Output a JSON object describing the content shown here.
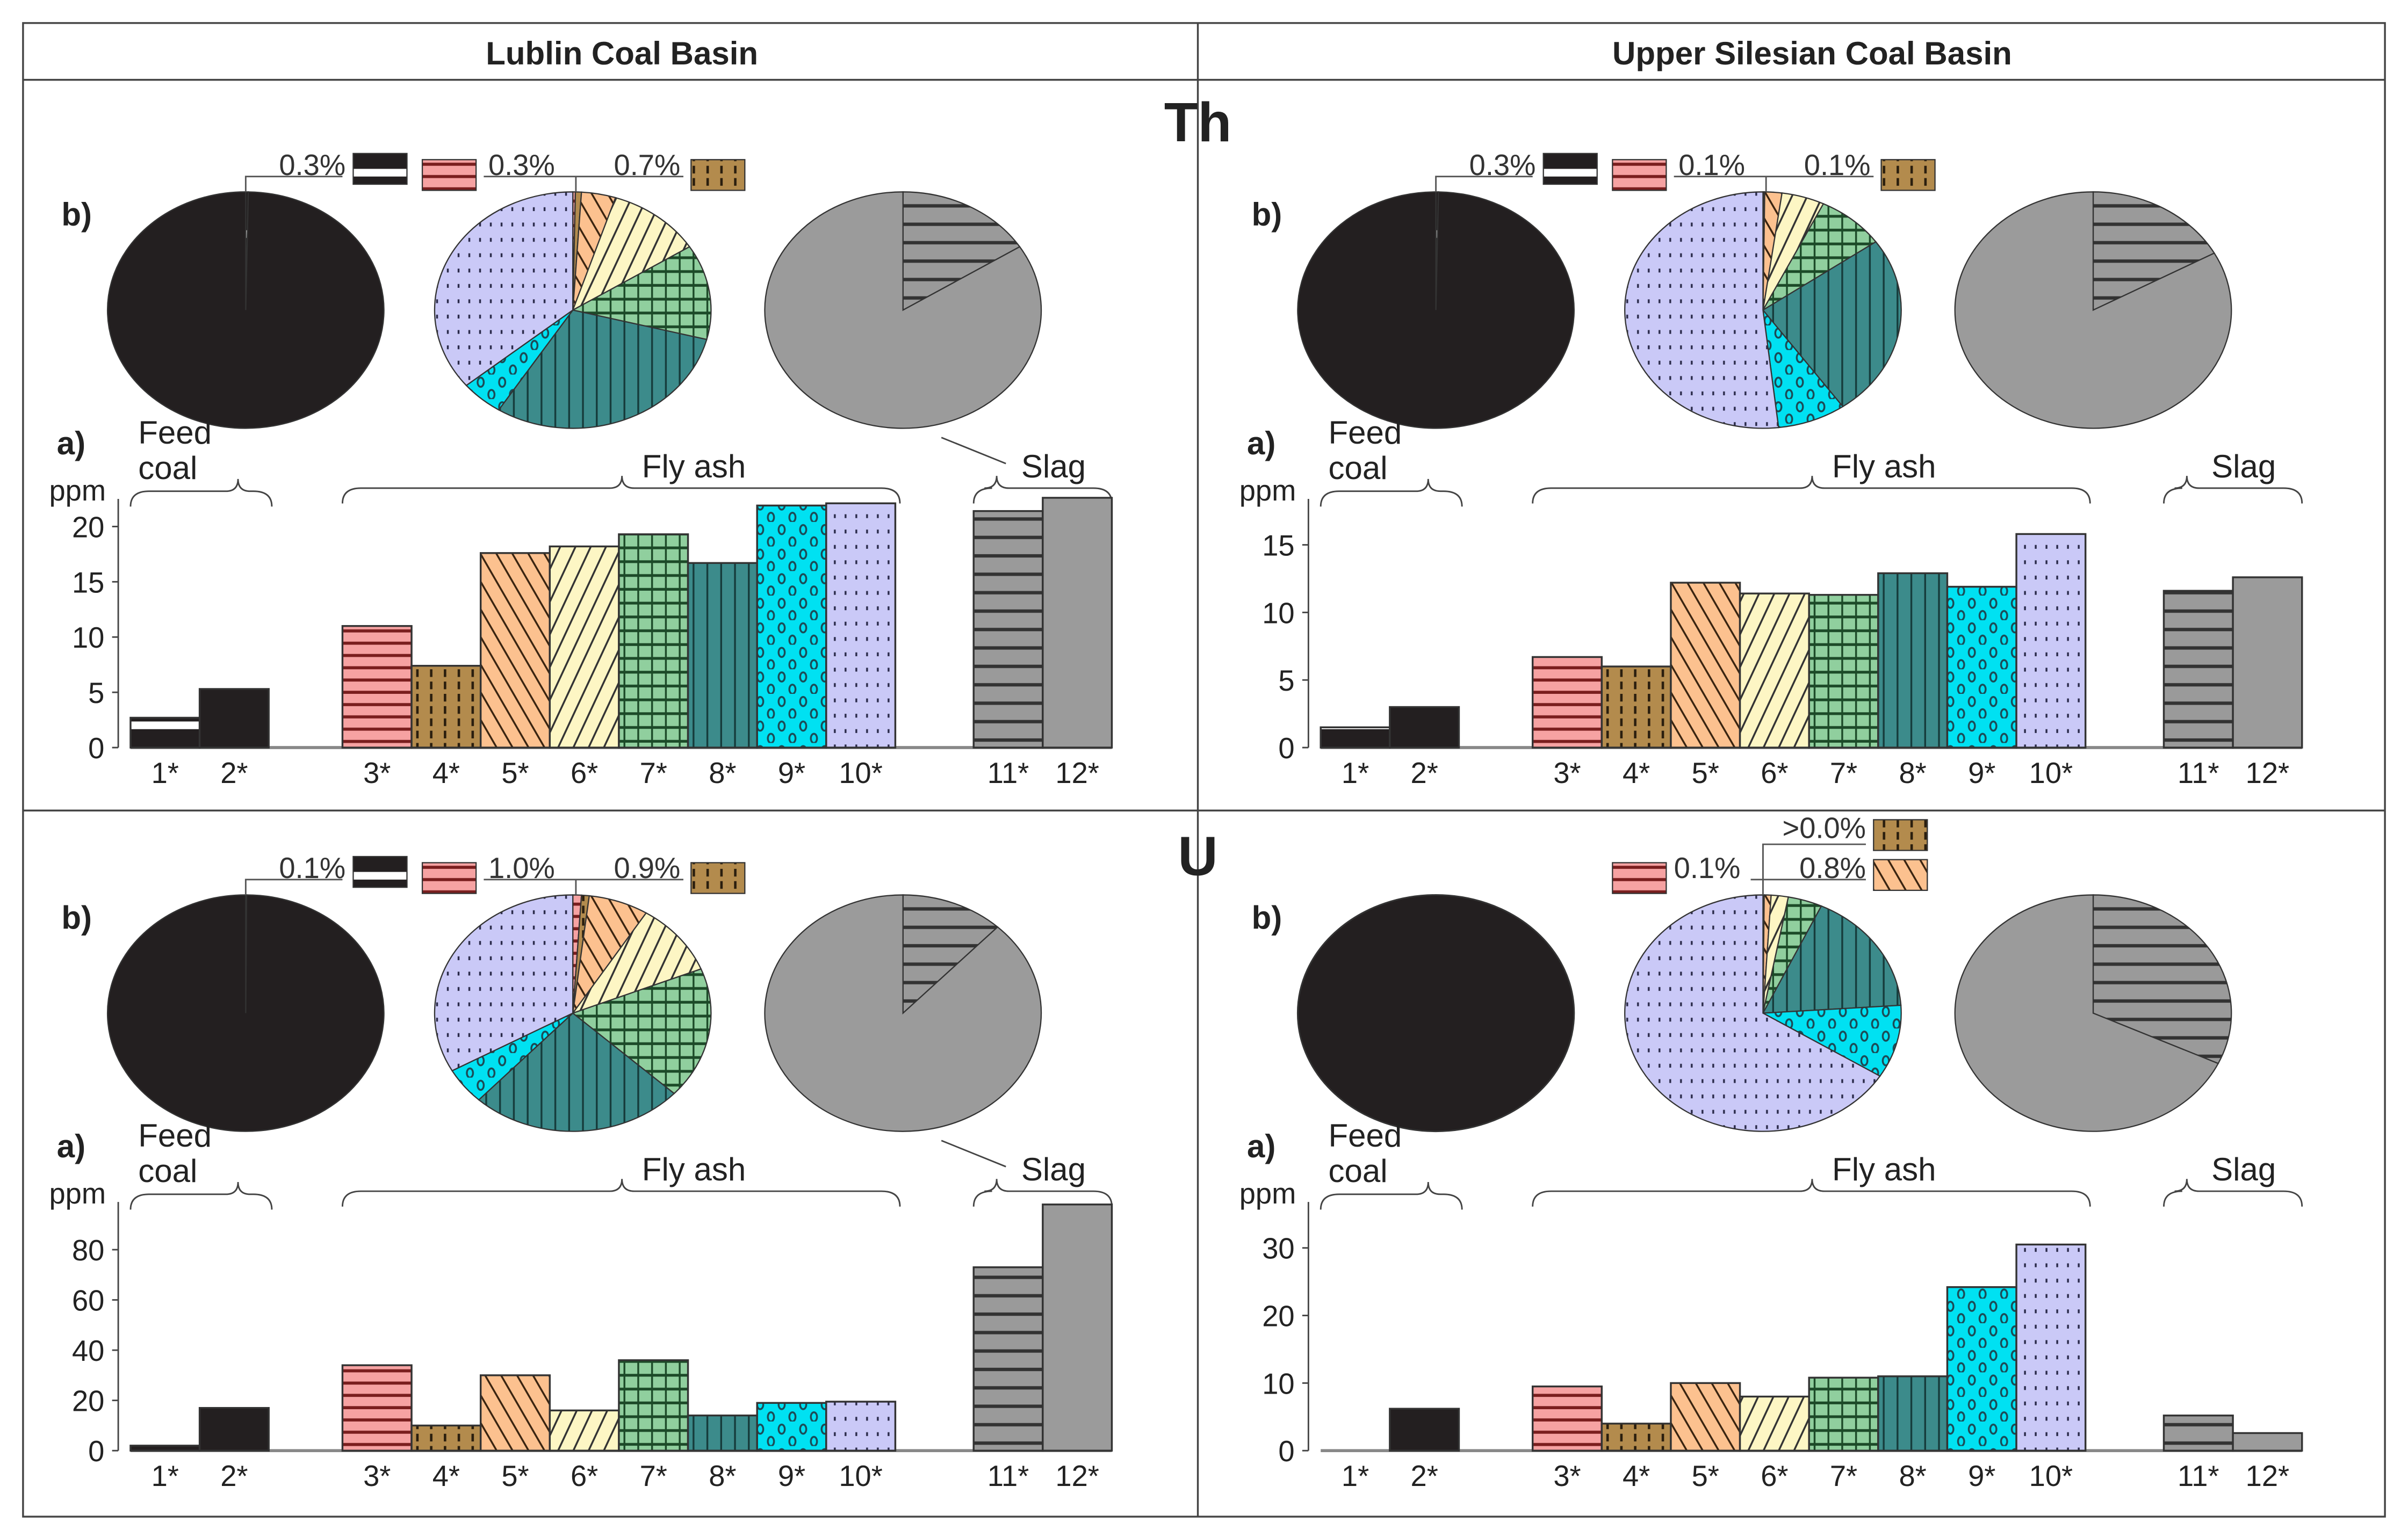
{
  "header": {
    "left": "Lublin Coal Basin",
    "right": "Upper Silesian Coal Basin"
  },
  "elements": [
    "Th",
    "U"
  ],
  "labels": {
    "pie": "b)",
    "bar": "a)",
    "feed": "Feed",
    "coal": "coal",
    "fly_ash": "Fly ash",
    "slag": "Slag",
    "unit": "ppm"
  },
  "categories": [
    "1*",
    "2*",
    "3*",
    "4*",
    "5*",
    "6*",
    "7*",
    "8*",
    "9*",
    "10*",
    "11*",
    "12*"
  ],
  "colors": {
    "1": "#231f20",
    "2": "#231f20",
    "3": "#f6a2a2",
    "4": "#b38b4d",
    "5": "#fcc18f",
    "6": "#fdf6c4",
    "7": "#90cf9e",
    "8": "#3c8b8b",
    "9": "#00e1f2",
    "10": "#cac9f7",
    "11": "#9a9a9a",
    "12": "#9b9b9b"
  },
  "chart_data": [
    {
      "type": "bar",
      "element": "Th",
      "basin": "Lublin Coal Basin",
      "ylabel": "ppm",
      "ylim": [
        0,
        22.5
      ],
      "yticks": [
        0,
        5,
        10,
        15,
        20
      ],
      "values": [
        2.7,
        5.3,
        11.0,
        7.4,
        17.6,
        18.2,
        19.3,
        16.7,
        21.9,
        22.1,
        21.4,
        22.6
      ],
      "pies": {
        "feed_coal": [
          0.003,
          0.997
        ],
        "fly_ash": [
          0.003,
          0.007,
          0.04,
          0.11,
          0.13,
          0.3,
          0.05,
          0.36
        ],
        "slag": [
          0.16,
          0.84
        ]
      },
      "pie_labels": [
        {
          "text": "0.3%",
          "swatch": "1"
        },
        {
          "text": "0.3%",
          "swatch": "3"
        },
        {
          "text": "0.7%",
          "swatch": "4"
        }
      ]
    },
    {
      "type": "bar",
      "element": "Th",
      "basin": "Upper Silesian Coal Basin",
      "ylabel": "ppm",
      "ylim": [
        0,
        18.4
      ],
      "yticks": [
        0,
        5,
        10,
        15
      ],
      "values": [
        1.5,
        3.0,
        6.7,
        6.0,
        12.2,
        11.4,
        11.3,
        12.9,
        11.9,
        15.8,
        11.6,
        12.6
      ],
      "pies": {
        "feed_coal": [
          0.003,
          0.997
        ],
        "fly_ash": [
          0.001,
          0.001,
          0.02,
          0.05,
          0.08,
          0.25,
          0.08,
          0.518
        ],
        "slag": [
          0.17,
          0.83
        ]
      },
      "pie_labels": [
        {
          "text": "0.3%",
          "swatch": "1"
        },
        {
          "text": "0.1%",
          "swatch": "3"
        },
        {
          "text": "0.1%",
          "swatch": "4"
        }
      ]
    },
    {
      "type": "bar",
      "element": "U",
      "basin": "Lublin Coal Basin",
      "ylabel": "ppm",
      "ylim": [
        0,
        99
      ],
      "yticks": [
        0,
        20,
        40,
        60,
        80
      ],
      "values": [
        2,
        17,
        34,
        10,
        30,
        16,
        36,
        14,
        19,
        19.5,
        73,
        98
      ],
      "pies": {
        "feed_coal": [
          0.001,
          0.999
        ],
        "fly_ash": [
          0.01,
          0.009,
          0.07,
          0.1,
          0.18,
          0.25,
          0.05,
          0.331
        ],
        "slag": [
          0.12,
          0.88
        ]
      },
      "pie_labels": [
        {
          "text": "0.1%",
          "swatch": "1"
        },
        {
          "text": "1.0%",
          "swatch": "3"
        },
        {
          "text": "0.9%",
          "swatch": "4"
        }
      ]
    },
    {
      "type": "bar",
      "element": "U",
      "basin": "Upper Silesian Coal Basin",
      "ylabel": "ppm",
      "ylim": [
        0,
        36.8
      ],
      "yticks": [
        0,
        10,
        20,
        30
      ],
      "values": [
        0,
        6.2,
        9.5,
        4.0,
        10.0,
        8.0,
        10.8,
        11.0,
        24.2,
        30.5,
        5.2,
        2.6
      ],
      "pies": {
        "feed_coal": [
          0,
          1
        ],
        "fly_ash": [
          0.001,
          0.0004,
          0.008,
          0.02,
          0.04,
          0.17,
          0.1,
          0.6606
        ],
        "slag": [
          0.32,
          0.68
        ]
      },
      "pie_labels": [
        {
          "text": "0.1%",
          "swatch": "3"
        },
        {
          "text": ">0.0%",
          "swatch": "4"
        },
        {
          "text": "0.8%",
          "swatch": "5"
        }
      ]
    }
  ]
}
